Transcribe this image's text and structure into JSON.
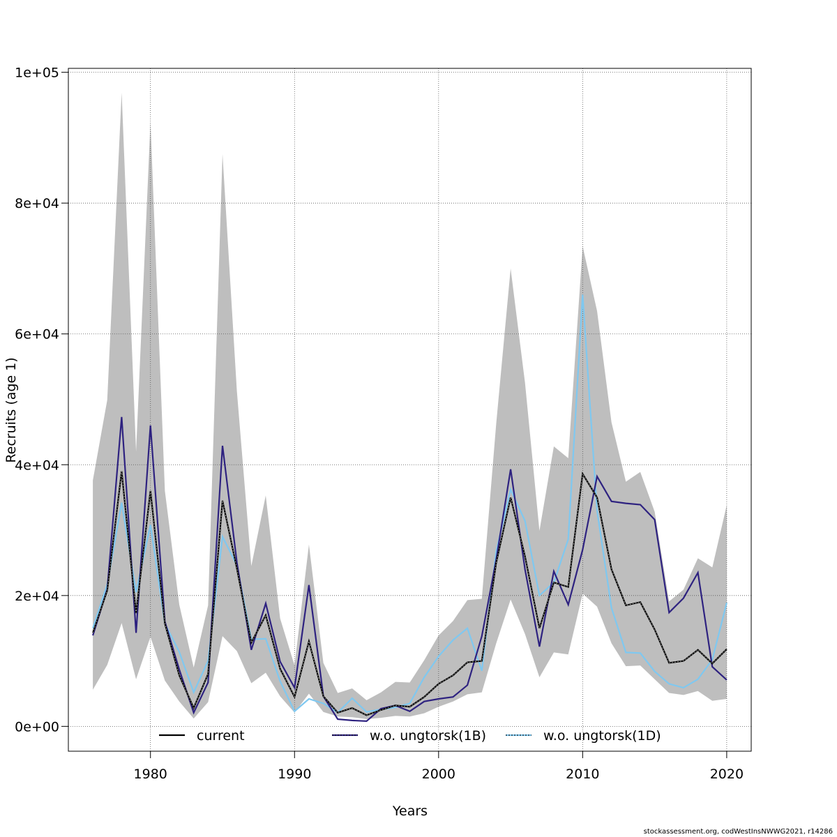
{
  "footer": "stockassessment.org, codWestInsNWWG2021, r14286",
  "chart_data": {
    "type": "line",
    "xlabel": "Years",
    "ylabel": "Recruits (age 1)",
    "xlim": [
      1974.3,
      2021.7
    ],
    "ylim": [
      -3800,
      100600
    ],
    "x_ticks": [
      1980,
      1990,
      2000,
      2010,
      2020
    ],
    "x_tick_labels": [
      "1980",
      "1990",
      "2000",
      "2010",
      "2020"
    ],
    "y_ticks": [
      0,
      20000,
      40000,
      60000,
      80000,
      100000
    ],
    "y_tick_labels": [
      "0e+00",
      "2e+04",
      "4e+04",
      "6e+04",
      "8e+04",
      "1e+05"
    ],
    "grid": true,
    "legend_position": "bottom",
    "x": [
      1976,
      1977,
      1978,
      1979,
      1980,
      1981,
      1982,
      1983,
      1984,
      1985,
      1986,
      1987,
      1988,
      1989,
      1990,
      1991,
      1992,
      1993,
      1994,
      1995,
      1996,
      1997,
      1998,
      1999,
      2000,
      2001,
      2002,
      2003,
      2004,
      2005,
      2006,
      2007,
      2008,
      2009,
      2010,
      2011,
      2012,
      2013,
      2014,
      2015,
      2016,
      2017,
      2018,
      2019,
      2020
    ],
    "band": {
      "color": "#bebebe",
      "lower": [
        5600,
        9400,
        15800,
        7200,
        13700,
        7000,
        3800,
        1200,
        3700,
        13800,
        11500,
        6600,
        8200,
        4600,
        2100,
        5000,
        2200,
        1500,
        1400,
        1100,
        1300,
        1600,
        1500,
        2000,
        3000,
        3800,
        4900,
        5200,
        12700,
        19400,
        14100,
        7500,
        11300,
        11000,
        20300,
        18300,
        12700,
        9200,
        9300,
        7200,
        5100,
        4800,
        5400,
        3900,
        4200
      ],
      "upper": [
        37600,
        49900,
        96900,
        42000,
        92400,
        36000,
        18600,
        9000,
        18500,
        87500,
        51200,
        24500,
        35300,
        16500,
        9300,
        27800,
        9700,
        5100,
        5800,
        4000,
        5200,
        6800,
        6700,
        10100,
        13900,
        16100,
        19300,
        19500,
        46300,
        70000,
        52500,
        29900,
        42800,
        41000,
        73400,
        63500,
        46500,
        37400,
        38900,
        32800,
        19100,
        20900,
        25700,
        24300,
        33800
      ]
    },
    "series": [
      {
        "name": "current",
        "color": "#000000",
        "dashed": true,
        "values": [
          14300,
          20800,
          39000,
          17300,
          36000,
          15700,
          7800,
          2800,
          8000,
          34500,
          24100,
          12800,
          17000,
          8800,
          4500,
          13000,
          4600,
          2100,
          2800,
          1700,
          2500,
          3200,
          3000,
          4500,
          6500,
          7800,
          9800,
          10000,
          25000,
          35000,
          26000,
          15000,
          22000,
          21300,
          38600,
          35000,
          24000,
          18500,
          19000,
          14800,
          9700,
          10000,
          11700,
          9600,
          11800
        ]
      },
      {
        "name": "w.o. ungtorsk(1B)",
        "color": "#2e2280",
        "dashed": false,
        "values": [
          13900,
          21000,
          47300,
          14300,
          46000,
          16000,
          8700,
          2100,
          6700,
          42900,
          25000,
          11700,
          18800,
          9900,
          5900,
          21600,
          4600,
          1100,
          900,
          800,
          2700,
          3200,
          2300,
          3800,
          4200,
          4500,
          6300,
          13800,
          25500,
          39300,
          24000,
          12200,
          23700,
          18600,
          27000,
          38200,
          34400,
          34100,
          33900,
          31600,
          17400,
          19600,
          23500,
          9100,
          7100
        ]
      },
      {
        "name": "w.o. ungtorsk(1D)",
        "color": "#7fc8f0",
        "dashed": false,
        "values": [
          15000,
          21700,
          34200,
          20500,
          30800,
          15700,
          11400,
          5200,
          10000,
          29000,
          24600,
          13300,
          13400,
          6900,
          2300,
          4200,
          3500,
          2100,
          4300,
          2200,
          2600,
          2900,
          3500,
          7500,
          10700,
          13200,
          15000,
          8500,
          26800,
          36200,
          31400,
          20000,
          22000,
          28600,
          66000,
          33000,
          18100,
          11300,
          11200,
          8400,
          6500,
          5900,
          7200,
          10200,
          18900
        ]
      }
    ]
  }
}
